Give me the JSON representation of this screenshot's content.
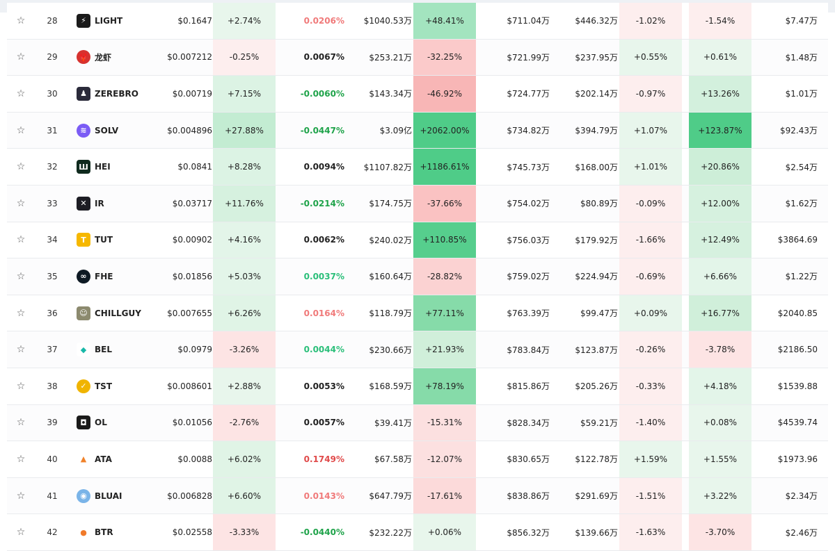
{
  "icons": {
    "LIGHT": {
      "bg": "#1b1b1b",
      "glyph": "⚡",
      "round": false
    },
    "龙虾": {
      "bg": "#d6322f",
      "glyph": "🦞",
      "round": true
    },
    "ZEREBRO": {
      "bg": "#2a2a3a",
      "glyph": "♟",
      "round": false
    },
    "SOLV": {
      "bg": "#7b5cf5",
      "glyph": "≋",
      "round": true
    },
    "HEI": {
      "bg": "#0f2a1e",
      "glyph": "Ш",
      "round": false
    },
    "IR": {
      "bg": "#1d1d24",
      "glyph": "✕",
      "round": false
    },
    "TUT": {
      "bg": "#f6b800",
      "glyph": "T",
      "round": false
    },
    "FHE": {
      "bg": "#0e1a24",
      "glyph": "∞",
      "round": true
    },
    "CHILLGUY": {
      "bg": "#8c8a6e",
      "glyph": "☺",
      "round": false
    },
    "BEL": {
      "bg": "#ffffff",
      "glyph": "◆",
      "round": false,
      "fg": "#18b8a8"
    },
    "TST": {
      "bg": "#f0b400",
      "glyph": "✓",
      "round": true
    },
    "OL": {
      "bg": "#1a1a1a",
      "glyph": "◘",
      "round": false
    },
    "ATA": {
      "bg": "#ffffff",
      "glyph": "▲",
      "round": false,
      "fg": "#f0822a"
    },
    "BLUAI": {
      "bg": "#7ab4e8",
      "glyph": "◉",
      "round": true
    },
    "BTR": {
      "bg": "#ffffff",
      "glyph": "●",
      "round": false,
      "fg": "#f07a2a"
    }
  },
  "rows": [
    {
      "rank": "28",
      "symbol": "LIGHT",
      "price": "$0.1647",
      "ch1": "+2.74%",
      "ch1Bg": "#e8f6ec",
      "fund": "0.0206%",
      "fundC": "red2",
      "vol": "$1040.53万",
      "vch": "+48.41%",
      "vchBg": "#a3e4bf",
      "oi": "$711.04万",
      "mc": "$446.32万",
      "ch2": "-1.02%",
      "ch2Bg": "#fdeeee",
      "ch3": "-1.54%",
      "ch3Bg": "#fdeeee",
      "last": "$7.47万"
    },
    {
      "rank": "29",
      "symbol": "龙虾",
      "price": "$0.007212",
      "ch1": "-0.25%",
      "ch1Bg": "#fdeeee",
      "fund": "0.0067%",
      "fundC": "neu",
      "vol": "$253.21万",
      "vch": "-32.25%",
      "vchBg": "#fbcaca",
      "oi": "$721.99万",
      "mc": "$237.95万",
      "ch2": "+0.55%",
      "ch2Bg": "#e8f6ec",
      "ch3": "+0.61%",
      "ch3Bg": "#e8f6ec",
      "last": "$1.48万"
    },
    {
      "rank": "30",
      "symbol": "ZEREBRO",
      "price": "$0.00719",
      "ch1": "+7.15%",
      "ch1Bg": "#dcf3e4",
      "fund": "-0.0060%",
      "fundC": "grn",
      "vol": "$143.34万",
      "vch": "-46.92%",
      "vchBg": "#f8b6b6",
      "oi": "$724.77万",
      "mc": "$202.14万",
      "ch2": "-0.97%",
      "ch2Bg": "#fdeeee",
      "ch3": "+13.26%",
      "ch3Bg": "#d3f0dd",
      "last": "$1.01万"
    },
    {
      "rank": "31",
      "symbol": "SOLV",
      "price": "$0.004896",
      "ch1": "+27.88%",
      "ch1Bg": "#c3ecd2",
      "fund": "-0.0447%",
      "fundC": "grn",
      "vol": "$3.09亿",
      "vch": "+2062.00%",
      "vchBg": "#4fcc88",
      "oi": "$734.82万",
      "mc": "$394.79万",
      "ch2": "+1.07%",
      "ch2Bg": "#e8f6ec",
      "ch3": "+123.87%",
      "ch3Bg": "#4fcc88",
      "last": "$92.43万"
    },
    {
      "rank": "32",
      "symbol": "HEI",
      "price": "$0.0841",
      "ch1": "+8.28%",
      "ch1Bg": "#dcf3e4",
      "fund": "0.0094%",
      "fundC": "neu",
      "vol": "$1107.82万",
      "vch": "+1186.61%",
      "vchBg": "#4fcc88",
      "oi": "$745.73万",
      "mc": "$168.00万",
      "ch2": "+1.01%",
      "ch2Bg": "#e8f6ec",
      "ch3": "+20.86%",
      "ch3Bg": "#cdeed8",
      "last": "$2.54万"
    },
    {
      "rank": "33",
      "symbol": "IR",
      "price": "$0.03717",
      "ch1": "+11.76%",
      "ch1Bg": "#d6f1df",
      "fund": "-0.0214%",
      "fundC": "grn",
      "vol": "$174.75万",
      "vch": "-37.66%",
      "vchBg": "#fac2c2",
      "oi": "$754.02万",
      "mc": "$80.89万",
      "ch2": "-0.09%",
      "ch2Bg": "#fdeeee",
      "ch3": "+12.00%",
      "ch3Bg": "#d6f1df",
      "last": "$1.62万"
    },
    {
      "rank": "34",
      "symbol": "TUT",
      "price": "$0.00902",
      "ch1": "+4.16%",
      "ch1Bg": "#e3f5e9",
      "fund": "0.0062%",
      "fundC": "neu",
      "vol": "$240.02万",
      "vch": "+110.85%",
      "vchBg": "#56ce8d",
      "oi": "$756.03万",
      "mc": "$179.92万",
      "ch2": "-1.66%",
      "ch2Bg": "#fdeeee",
      "ch3": "+12.49%",
      "ch3Bg": "#d6f1df",
      "last": "$3864.69"
    },
    {
      "rank": "35",
      "symbol": "FHE",
      "price": "$0.01856",
      "ch1": "+5.03%",
      "ch1Bg": "#e3f5e9",
      "fund": "0.0037%",
      "fundC": "grn2",
      "vol": "$160.64万",
      "vch": "-28.82%",
      "vchBg": "#fbd2d2",
      "oi": "$759.02万",
      "mc": "$224.94万",
      "ch2": "-0.69%",
      "ch2Bg": "#fdeeee",
      "ch3": "+6.66%",
      "ch3Bg": "#e3f5e9",
      "last": "$1.22万"
    },
    {
      "rank": "36",
      "symbol": "CHILLGUY",
      "price": "$0.007655",
      "ch1": "+6.26%",
      "ch1Bg": "#e0f4e6",
      "fund": "0.0164%",
      "fundC": "red2",
      "vol": "$118.79万",
      "vch": "+77.11%",
      "vchBg": "#86dba9",
      "oi": "$763.39万",
      "mc": "$99.47万",
      "ch2": "+0.09%",
      "ch2Bg": "#e8f6ec",
      "ch3": "+16.77%",
      "ch3Bg": "#d0efda",
      "last": "$2040.85"
    },
    {
      "rank": "37",
      "symbol": "BEL",
      "price": "$0.0979",
      "ch1": "-3.26%",
      "ch1Bg": "#fde4e4",
      "fund": "0.0044%",
      "fundC": "grn2",
      "vol": "$230.66万",
      "vch": "+21.93%",
      "vchBg": "#d0efda",
      "oi": "$783.84万",
      "mc": "$123.87万",
      "ch2": "-0.26%",
      "ch2Bg": "#fdeeee",
      "ch3": "-3.78%",
      "ch3Bg": "#fde4e4",
      "last": "$2186.50"
    },
    {
      "rank": "38",
      "symbol": "TST",
      "price": "$0.008601",
      "ch1": "+2.88%",
      "ch1Bg": "#e8f6ec",
      "fund": "0.0053%",
      "fundC": "neu",
      "vol": "$168.59万",
      "vch": "+78.19%",
      "vchBg": "#86dba9",
      "oi": "$815.86万",
      "mc": "$205.26万",
      "ch2": "-0.33%",
      "ch2Bg": "#fdeeee",
      "ch3": "+4.18%",
      "ch3Bg": "#e3f5e9",
      "last": "$1539.88"
    },
    {
      "rank": "39",
      "symbol": "OL",
      "price": "$0.01056",
      "ch1": "-2.76%",
      "ch1Bg": "#fde4e4",
      "fund": "0.0057%",
      "fundC": "neu",
      "vol": "$39.41万",
      "vch": "-15.31%",
      "vchBg": "#fce0e0",
      "oi": "$828.34万",
      "mc": "$59.21万",
      "ch2": "-1.40%",
      "ch2Bg": "#fdeeee",
      "ch3": "+0.08%",
      "ch3Bg": "#e8f6ec",
      "last": "$4539.74"
    },
    {
      "rank": "40",
      "symbol": "ATA",
      "price": "$0.0088",
      "ch1": "+6.02%",
      "ch1Bg": "#e0f4e6",
      "fund": "0.1749%",
      "fundC": "red",
      "vol": "$67.58万",
      "vch": "-12.07%",
      "vchBg": "#fce0e0",
      "oi": "$830.65万",
      "mc": "$122.78万",
      "ch2": "+1.59%",
      "ch2Bg": "#e8f6ec",
      "ch3": "+1.55%",
      "ch3Bg": "#e8f6ec",
      "last": "$1973.96"
    },
    {
      "rank": "41",
      "symbol": "BLUAI",
      "price": "$0.006828",
      "ch1": "+6.60%",
      "ch1Bg": "#e0f4e6",
      "fund": "0.0143%",
      "fundC": "red2",
      "vol": "$647.79万",
      "vch": "-17.61%",
      "vchBg": "#fcdada",
      "oi": "$838.86万",
      "mc": "$291.69万",
      "ch2": "-1.51%",
      "ch2Bg": "#fdeeee",
      "ch3": "+3.22%",
      "ch3Bg": "#e8f6ec",
      "last": "$2.34万"
    },
    {
      "rank": "42",
      "symbol": "BTR",
      "price": "$0.02558",
      "ch1": "-3.33%",
      "ch1Bg": "#fde4e4",
      "fund": "-0.0440%",
      "fundC": "grn",
      "vol": "$232.22万",
      "vch": "+0.06%",
      "vchBg": "#e8f6ec",
      "oi": "$856.32万",
      "mc": "$139.66万",
      "ch2": "-1.63%",
      "ch2Bg": "#fdeeee",
      "ch3": "-3.70%",
      "ch3Bg": "#fde4e4",
      "last": "$2.46万"
    }
  ]
}
